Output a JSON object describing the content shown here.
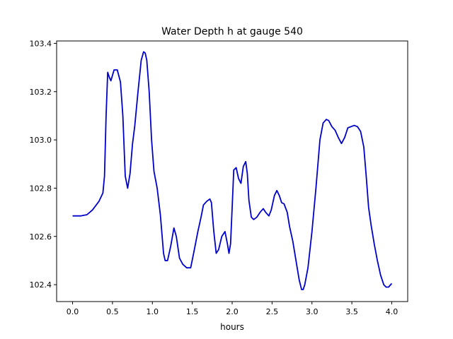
{
  "chart_data": {
    "type": "line",
    "title": "Water Depth h at gauge 540",
    "xlabel": "hours",
    "ylabel": "",
    "xlim": [
      -0.2,
      4.2
    ],
    "ylim": [
      102.33,
      103.41
    ],
    "xticks": [
      0.0,
      0.5,
      1.0,
      1.5,
      2.0,
      2.5,
      3.0,
      3.5,
      4.0
    ],
    "xtick_labels": [
      "0.0",
      "0.5",
      "1.0",
      "1.5",
      "2.0",
      "2.5",
      "3.0",
      "3.5",
      "4.0"
    ],
    "yticks": [
      102.4,
      102.6,
      102.8,
      103.0,
      103.2,
      103.4
    ],
    "ytick_labels": [
      "102.4",
      "102.6",
      "102.8",
      "103.0",
      "103.2",
      "103.4"
    ],
    "grid": false,
    "legend": "none",
    "series": [
      {
        "color": "#0000cc",
        "x": [
          0.0,
          0.1,
          0.18,
          0.25,
          0.33,
          0.38,
          0.4,
          0.42,
          0.44,
          0.46,
          0.48,
          0.52,
          0.56,
          0.6,
          0.63,
          0.66,
          0.69,
          0.72,
          0.75,
          0.78,
          0.82,
          0.86,
          0.89,
          0.91,
          0.93,
          0.96,
          0.99,
          1.02,
          1.06,
          1.1,
          1.14,
          1.16,
          1.19,
          1.23,
          1.27,
          1.3,
          1.34,
          1.38,
          1.43,
          1.48,
          1.52,
          1.57,
          1.61,
          1.64,
          1.68,
          1.72,
          1.74,
          1.77,
          1.8,
          1.83,
          1.87,
          1.91,
          1.94,
          1.96,
          1.98,
          2.0,
          2.02,
          2.05,
          2.08,
          2.11,
          2.14,
          2.17,
          2.19,
          2.21,
          2.24,
          2.27,
          2.31,
          2.35,
          2.39,
          2.42,
          2.46,
          2.49,
          2.53,
          2.56,
          2.59,
          2.62,
          2.65,
          2.69,
          2.72,
          2.76,
          2.8,
          2.84,
          2.87,
          2.89,
          2.91,
          2.95,
          3.0,
          3.05,
          3.1,
          3.14,
          3.18,
          3.21,
          3.25,
          3.29,
          3.33,
          3.37,
          3.41,
          3.45,
          3.49,
          3.53,
          3.57,
          3.61,
          3.65,
          3.68,
          3.71,
          3.74,
          3.78,
          3.82,
          3.86,
          3.9,
          3.93,
          3.96,
          4.0
        ],
        "values": [
          102.685,
          102.685,
          102.69,
          102.71,
          102.745,
          102.78,
          102.85,
          103.1,
          103.28,
          103.26,
          103.245,
          103.29,
          103.29,
          103.24,
          103.1,
          102.85,
          102.8,
          102.86,
          102.98,
          103.06,
          103.2,
          103.33,
          103.365,
          103.36,
          103.33,
          103.2,
          103.0,
          102.87,
          102.8,
          102.69,
          102.53,
          102.5,
          102.5,
          102.56,
          102.635,
          102.6,
          102.51,
          102.485,
          102.47,
          102.47,
          102.535,
          102.62,
          102.68,
          102.73,
          102.745,
          102.755,
          102.74,
          102.62,
          102.53,
          102.545,
          102.6,
          102.62,
          102.57,
          102.53,
          102.57,
          102.72,
          102.875,
          102.885,
          102.84,
          102.82,
          102.89,
          102.91,
          102.86,
          102.75,
          102.68,
          102.67,
          102.68,
          102.7,
          102.715,
          102.7,
          102.685,
          102.71,
          102.77,
          102.79,
          102.77,
          102.74,
          102.735,
          102.7,
          102.64,
          102.58,
          102.5,
          102.42,
          102.38,
          102.38,
          102.4,
          102.47,
          102.62,
          102.8,
          103.0,
          103.07,
          103.085,
          103.08,
          103.055,
          103.04,
          103.01,
          102.985,
          103.01,
          103.05,
          103.055,
          103.06,
          103.055,
          103.035,
          102.97,
          102.85,
          102.72,
          102.65,
          102.57,
          102.5,
          102.44,
          102.4,
          102.39,
          102.39,
          102.405
        ]
      }
    ]
  }
}
